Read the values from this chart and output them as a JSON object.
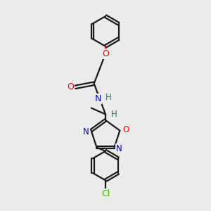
{
  "background_color": "#ebebeb",
  "bond_color": "#1a1a1a",
  "oxygen_color": "#ff0000",
  "nitrogen_color": "#0000cc",
  "chlorine_color": "#33bb00",
  "hydrogen_color": "#008080",
  "line_width": 1.6,
  "figsize": [
    3.0,
    3.0
  ],
  "dpi": 100,
  "xlim": [
    0,
    10
  ],
  "ylim": [
    0,
    10
  ]
}
